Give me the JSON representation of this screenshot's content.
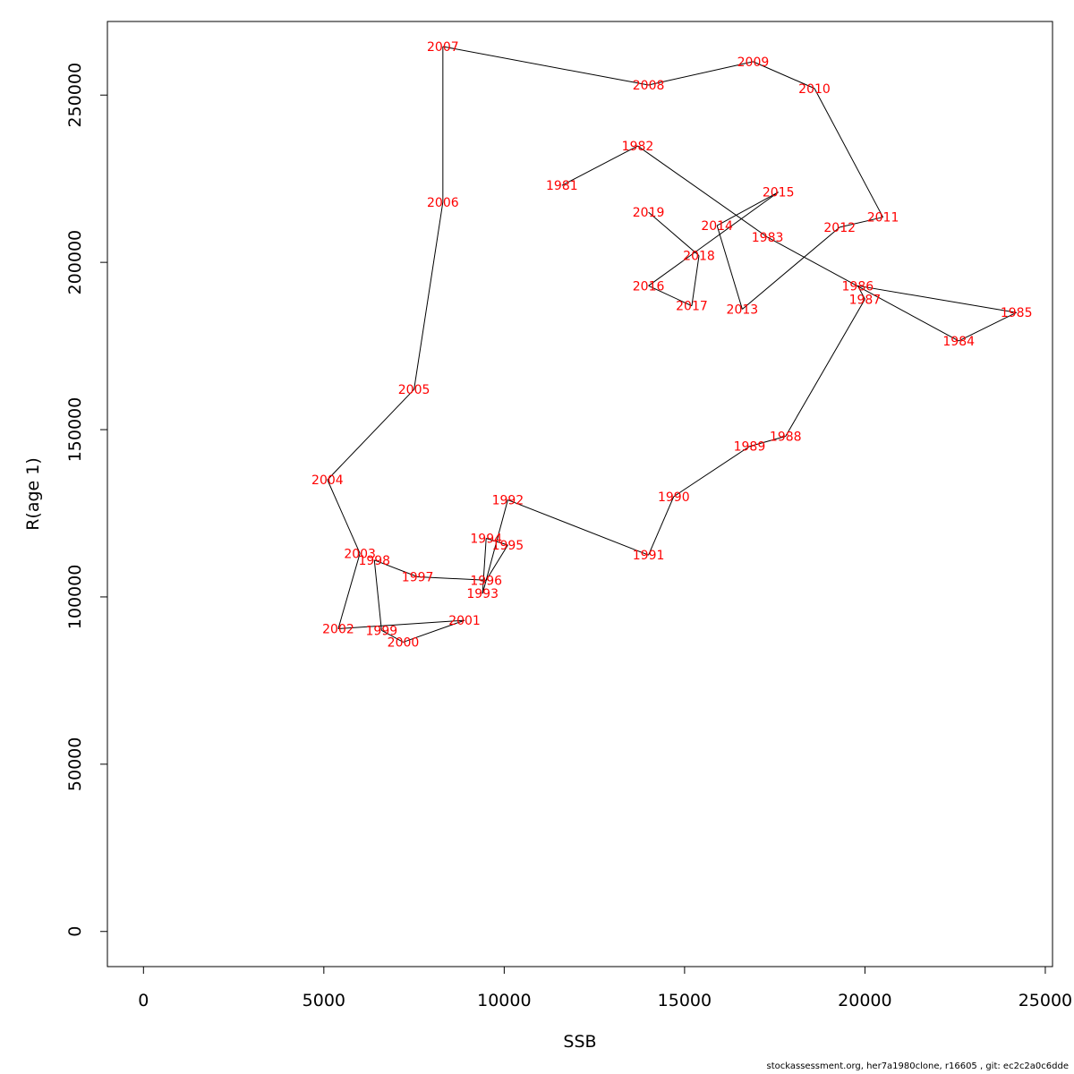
{
  "chart_data": {
    "type": "line",
    "xlabel": "SSB",
    "ylabel": "R(age 1)",
    "xlim": [
      -1000,
      25200
    ],
    "ylim": [
      -10500,
      272000
    ],
    "x_ticks": [
      0,
      5000,
      10000,
      15000,
      20000,
      25000
    ],
    "x_tick_labels": [
      "0",
      "5000",
      "10000",
      "15000",
      "20000",
      "25000"
    ],
    "y_ticks": [
      0,
      50000,
      100000,
      150000,
      200000,
      250000
    ],
    "y_tick_labels": [
      "0",
      "50000",
      "100000",
      "150000",
      "200000",
      "250000"
    ],
    "grid": false,
    "legend": "none",
    "line_color": "#000000",
    "label_color": "#ff0000",
    "points": [
      {
        "label": "1981",
        "x": 11600,
        "y": 223000
      },
      {
        "label": "1982",
        "x": 13700,
        "y": 234800
      },
      {
        "label": "1983",
        "x": 17300,
        "y": 207500
      },
      {
        "label": "1984",
        "x": 22600,
        "y": 176500
      },
      {
        "label": "1985",
        "x": 24200,
        "y": 185000
      },
      {
        "label": "1986",
        "x": 19800,
        "y": 193000
      },
      {
        "label": "1987",
        "x": 20000,
        "y": 189000
      },
      {
        "label": "1988",
        "x": 17800,
        "y": 148000
      },
      {
        "label": "1989",
        "x": 16800,
        "y": 145000
      },
      {
        "label": "1990",
        "x": 14700,
        "y": 130000
      },
      {
        "label": "1991",
        "x": 14000,
        "y": 112500
      },
      {
        "label": "1992",
        "x": 10100,
        "y": 129000
      },
      {
        "label": "1993",
        "x": 9400,
        "y": 101000
      },
      {
        "label": "1994",
        "x": 9500,
        "y": 117500
      },
      {
        "label": "1995",
        "x": 10100,
        "y": 115500
      },
      {
        "label": "1996",
        "x": 9500,
        "y": 105000
      },
      {
        "label": "1997",
        "x": 7600,
        "y": 106000
      },
      {
        "label": "1998",
        "x": 6400,
        "y": 111000
      },
      {
        "label": "1999",
        "x": 6600,
        "y": 90000
      },
      {
        "label": "2000",
        "x": 7200,
        "y": 86500
      },
      {
        "label": "2001",
        "x": 8900,
        "y": 93000
      },
      {
        "label": "2002",
        "x": 5400,
        "y": 90500
      },
      {
        "label": "2003",
        "x": 6000,
        "y": 113000
      },
      {
        "label": "2004",
        "x": 5100,
        "y": 135000
      },
      {
        "label": "2005",
        "x": 7500,
        "y": 162000
      },
      {
        "label": "2006",
        "x": 8300,
        "y": 218000
      },
      {
        "label": "2007",
        "x": 8300,
        "y": 264500
      },
      {
        "label": "2008",
        "x": 14000,
        "y": 253000
      },
      {
        "label": "2009",
        "x": 16900,
        "y": 260000
      },
      {
        "label": "2010",
        "x": 18600,
        "y": 252000
      },
      {
        "label": "2011",
        "x": 20500,
        "y": 213500
      },
      {
        "label": "2012",
        "x": 19300,
        "y": 210500
      },
      {
        "label": "2013",
        "x": 16600,
        "y": 186000
      },
      {
        "label": "2014",
        "x": 15900,
        "y": 211000
      },
      {
        "label": "2015",
        "x": 17600,
        "y": 221000
      },
      {
        "label": "2016",
        "x": 14000,
        "y": 193000
      },
      {
        "label": "2017",
        "x": 15200,
        "y": 187000
      },
      {
        "label": "2018",
        "x": 15400,
        "y": 202000
      },
      {
        "label": "2019",
        "x": 14000,
        "y": 215000
      }
    ]
  },
  "footer": {
    "text": "stockassessment.org, her7a1980clone, r16605 , git: ec2c2a0c6dde"
  }
}
